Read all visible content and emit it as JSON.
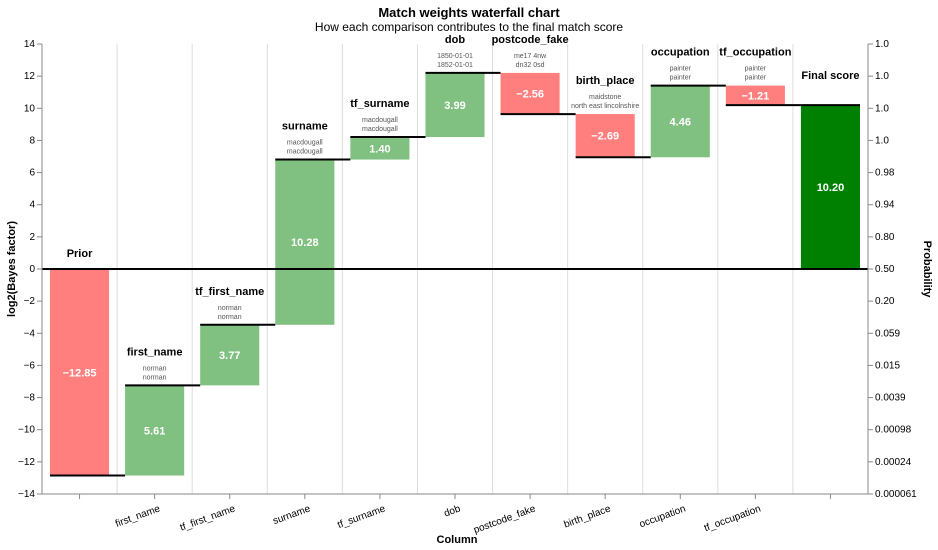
{
  "chart_data": {
    "type": "waterfall",
    "title": "Match weights waterfall chart",
    "subtitle": "How each comparison contributes to the final match score",
    "xlabel": "Column",
    "ylabel": "log2(Bayes factor)",
    "y2label": "Probability",
    "ylim": [
      -14,
      14
    ],
    "yticks": [
      14,
      12,
      10,
      8,
      6,
      4,
      2,
      0,
      -2,
      -4,
      -6,
      -8,
      -10,
      -12,
      -14
    ],
    "y2ticks": [
      "1.0",
      "1.0",
      "1.0",
      "1.0",
      "0.98",
      "0.94",
      "0.80",
      "0.50",
      "0.20",
      "0.059",
      "0.015",
      "0.0039",
      "0.00098",
      "0.00024",
      "0.000061"
    ],
    "steps": [
      {
        "column": "Prior",
        "tick": "",
        "value": -12.85,
        "label": "−12.85",
        "values_text": []
      },
      {
        "column": "first_name",
        "tick": "first_name",
        "value": 5.61,
        "label": "5.61",
        "values_text": [
          "norman",
          "norman"
        ]
      },
      {
        "column": "tf_first_name",
        "tick": "tf_first_name",
        "value": 3.77,
        "label": "3.77",
        "values_text": [
          "norman",
          "norman"
        ]
      },
      {
        "column": "surname",
        "tick": "surname",
        "value": 10.28,
        "label": "10.28",
        "values_text": [
          "macdougall",
          "macdougall"
        ]
      },
      {
        "column": "tf_surname",
        "tick": "tf_surname",
        "value": 1.4,
        "label": "1.40",
        "values_text": [
          "macdougall",
          "macdougall"
        ]
      },
      {
        "column": "dob",
        "tick": "dob",
        "value": 3.99,
        "label": "3.99",
        "values_text": [
          "1850-01-01",
          "1852-01-01"
        ]
      },
      {
        "column": "postcode_fake",
        "tick": "postcode_fake",
        "value": -2.56,
        "label": "−2.56",
        "values_text": [
          "me17 4nw",
          "dn32 0sd"
        ]
      },
      {
        "column": "birth_place",
        "tick": "birth_place",
        "value": -2.69,
        "label": "−2.69",
        "values_text": [
          "maidstone",
          "north east lincolnshire"
        ]
      },
      {
        "column": "occupation",
        "tick": "occupation",
        "value": 4.46,
        "label": "4.46",
        "values_text": [
          "painter",
          "painter"
        ]
      },
      {
        "column": "tf_occupation",
        "tick": "tf_occupation",
        "value": -1.21,
        "label": "−1.21",
        "values_text": [
          "painter",
          "painter"
        ]
      }
    ],
    "final": {
      "column": "Final score",
      "value": 10.2,
      "label": "10.20"
    },
    "colors": {
      "positive": "#80c080",
      "negative": "#ff7f7f",
      "final": "#008000",
      "grid": "#dddddd",
      "axis": "#888888"
    }
  }
}
